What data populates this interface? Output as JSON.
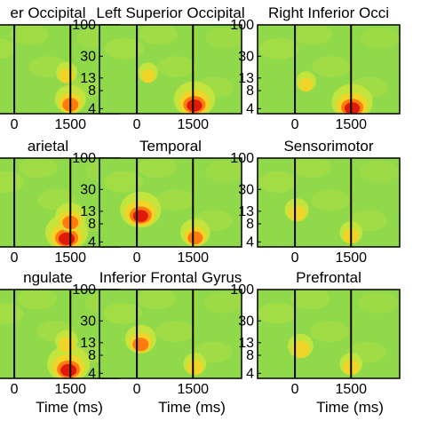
{
  "chart_data": {
    "type": "heatmap",
    "x_ticks": [
      0,
      1500
    ],
    "y_ticks": [
      4,
      8,
      13,
      30,
      100
    ],
    "xlabel": "Time (ms)",
    "yscale": "log",
    "colormap": {
      "background": "#8fd94a",
      "low": "#c8e43c",
      "mid": "#f2d427",
      "high": "#ff7a10",
      "peak": "#e01a0a"
    },
    "vertical_lines": [
      0,
      1500
    ],
    "panels": [
      {
        "title": "er Occipital",
        "hotspots": [
          {
            "t": 1500,
            "f": 5,
            "level": 0.6
          },
          {
            "t": 1400,
            "f": 14,
            "level": 0.25
          }
        ]
      },
      {
        "title": "Left Superior Occipital",
        "hotspots": [
          {
            "t": 1540,
            "f": 5,
            "level": 0.95
          },
          {
            "t": 300,
            "f": 14,
            "level": 0.2
          }
        ]
      },
      {
        "title": "Right Inferior Occi",
        "hotspots": [
          {
            "t": 1530,
            "f": 4.5,
            "level": 0.95
          },
          {
            "t": 300,
            "f": 10,
            "level": 0.2
          }
        ]
      },
      {
        "title": "arietal",
        "hotspots": [
          {
            "t": 1400,
            "f": 5,
            "level": 1.0
          },
          {
            "t": 1500,
            "f": 9,
            "level": 0.6
          }
        ]
      },
      {
        "title": "Temporal",
        "hotspots": [
          {
            "t": 100,
            "f": 12,
            "level": 0.95
          },
          {
            "t": 1560,
            "f": 5,
            "level": 0.55
          }
        ]
      },
      {
        "title": "Sensorimotor",
        "hotspots": [
          {
            "t": 50,
            "f": 12,
            "level": 0.35
          },
          {
            "t": 1500,
            "f": 5,
            "level": 0.3
          }
        ]
      },
      {
        "title": "ngulate",
        "hotspots": [
          {
            "t": 1450,
            "f": 5,
            "level": 1.0
          },
          {
            "t": 1400,
            "f": 12,
            "level": 0.3
          }
        ]
      },
      {
        "title": "Inferior Frontal Gyrus",
        "hotspots": [
          {
            "t": 100,
            "f": 13,
            "level": 0.6
          },
          {
            "t": 1550,
            "f": 5,
            "level": 0.3
          }
        ]
      },
      {
        "title": "Prefrontal",
        "hotspots": [
          {
            "t": 150,
            "f": 10,
            "level": 0.4
          },
          {
            "t": 1500,
            "f": 5,
            "level": 0.3
          }
        ]
      }
    ]
  }
}
